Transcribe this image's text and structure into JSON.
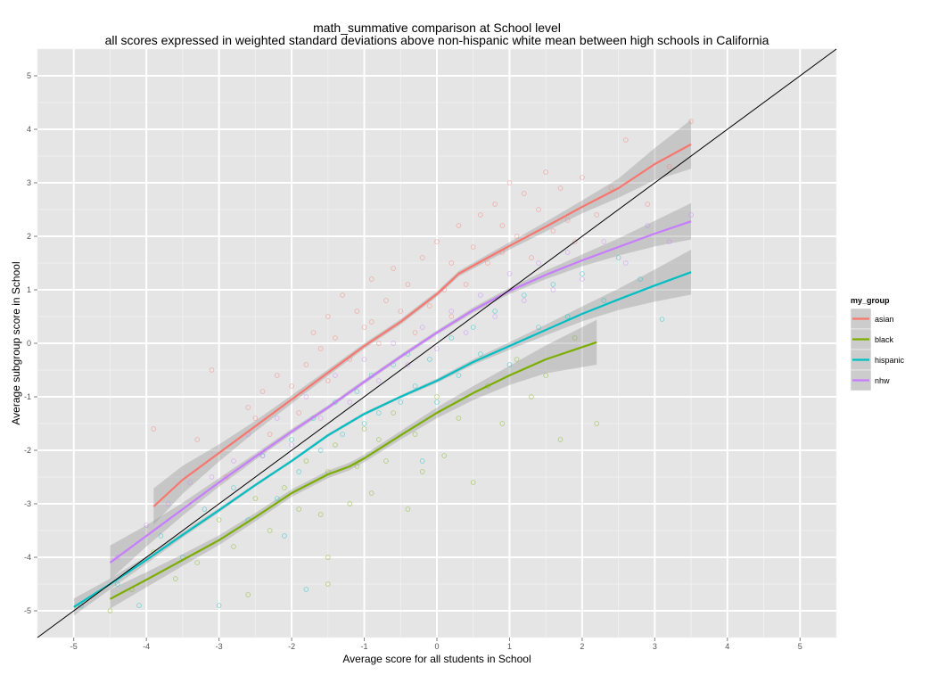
{
  "chart_data": {
    "type": "scatter",
    "title": "math_summative comparison at School level",
    "subtitle": "all scores expressed in weighted standard deviations above non-hispanic white mean between high schools in California",
    "xlabel": "Average score for all students in School",
    "ylabel": "Average subgroup score in School",
    "xlim": [
      -5.5,
      5.5
    ],
    "ylim": [
      -5.5,
      5.5
    ],
    "x_ticks": [
      -5,
      -4,
      -3,
      -2,
      -1,
      0,
      1,
      2,
      3,
      4,
      5
    ],
    "y_ticks": [
      -5,
      -4,
      -3,
      -2,
      -1,
      0,
      1,
      2,
      3,
      4,
      5
    ],
    "grid": true,
    "reference_line": {
      "slope": 1,
      "intercept": 0
    },
    "legend": {
      "title": "my_group",
      "placement": "right"
    },
    "series": [
      {
        "name": "asian",
        "color": "#F8766D",
        "smooth": {
          "x": [
            -3.9,
            -3.5,
            -3.0,
            -2.5,
            -2.0,
            -1.5,
            -1.0,
            -0.5,
            0.0,
            0.3,
            0.7,
            1.0,
            1.5,
            2.0,
            2.5,
            3.0,
            3.5
          ],
          "y": [
            -3.05,
            -2.55,
            -2.05,
            -1.55,
            -1.05,
            -0.55,
            -0.05,
            0.4,
            0.92,
            1.3,
            1.6,
            1.82,
            2.18,
            2.55,
            2.9,
            3.35,
            3.72
          ],
          "band": [
            0.34,
            0.26,
            0.16,
            0.1,
            0.08,
            0.06,
            0.05,
            0.05,
            0.05,
            0.05,
            0.06,
            0.07,
            0.09,
            0.12,
            0.18,
            0.3,
            0.46
          ]
        },
        "points": [
          [
            -3.9,
            -1.6
          ],
          [
            -3.3,
            -1.8
          ],
          [
            -2.9,
            -2.5
          ],
          [
            -3.1,
            -0.5
          ],
          [
            -2.6,
            -1.2
          ],
          [
            -2.5,
            -1.4
          ],
          [
            -2.4,
            -0.9
          ],
          [
            -2.2,
            -0.6
          ],
          [
            -2.0,
            -0.8
          ],
          [
            -1.9,
            -1.3
          ],
          [
            -1.8,
            -0.4
          ],
          [
            -1.7,
            0.2
          ],
          [
            -1.6,
            -0.1
          ],
          [
            -1.5,
            0.5
          ],
          [
            -1.4,
            0.1
          ],
          [
            -1.3,
            0.9
          ],
          [
            -1.2,
            -0.3
          ],
          [
            -1.1,
            0.6
          ],
          [
            -1.0,
            0.3
          ],
          [
            -0.9,
            1.2
          ],
          [
            -0.8,
            0.0
          ],
          [
            -0.7,
            0.8
          ],
          [
            -0.6,
            1.4
          ],
          [
            -0.5,
            0.6
          ],
          [
            -0.4,
            1.1
          ],
          [
            -0.3,
            0.2
          ],
          [
            -0.2,
            1.6
          ],
          [
            -0.1,
            0.7
          ],
          [
            0.0,
            1.9
          ],
          [
            0.1,
            1.0
          ],
          [
            0.2,
            1.5
          ],
          [
            0.3,
            2.2
          ],
          [
            0.4,
            1.1
          ],
          [
            0.5,
            1.8
          ],
          [
            0.6,
            2.4
          ],
          [
            0.7,
            1.5
          ],
          [
            0.8,
            2.6
          ],
          [
            0.9,
            1.7
          ],
          [
            1.0,
            3.0
          ],
          [
            1.1,
            2.0
          ],
          [
            1.2,
            2.8
          ],
          [
            1.3,
            1.6
          ],
          [
            1.4,
            2.5
          ],
          [
            1.5,
            3.2
          ],
          [
            1.6,
            2.1
          ],
          [
            1.7,
            2.9
          ],
          [
            1.8,
            2.3
          ],
          [
            2.0,
            3.1
          ],
          [
            2.2,
            2.4
          ],
          [
            2.4,
            2.9
          ],
          [
            2.6,
            3.8
          ],
          [
            2.9,
            2.6
          ],
          [
            3.2,
            3.3
          ],
          [
            3.5,
            4.15
          ],
          [
            -2.3,
            -1.7
          ],
          [
            -1.5,
            -0.7
          ],
          [
            -0.9,
            0.4
          ],
          [
            0.2,
            0.5
          ],
          [
            0.9,
            2.2
          ],
          [
            1.9,
            1.9
          ]
        ]
      },
      {
        "name": "black",
        "color": "#7CAE00",
        "smooth": {
          "x": [
            -4.5,
            -4.0,
            -3.5,
            -3.0,
            -2.5,
            -2.0,
            -1.5,
            -1.2,
            -1.0,
            -0.5,
            0.0,
            0.5,
            1.0,
            1.5,
            2.2
          ],
          "y": [
            -4.78,
            -4.42,
            -4.05,
            -3.68,
            -3.25,
            -2.8,
            -2.45,
            -2.3,
            -2.15,
            -1.72,
            -1.3,
            -0.93,
            -0.6,
            -0.3,
            0.02
          ],
          "band": [
            0.18,
            0.14,
            0.11,
            0.09,
            0.08,
            0.07,
            0.07,
            0.07,
            0.07,
            0.08,
            0.1,
            0.13,
            0.18,
            0.26,
            0.42
          ]
        },
        "points": [
          [
            -4.5,
            -5.0
          ],
          [
            -4.2,
            -4.6
          ],
          [
            -3.9,
            -3.9
          ],
          [
            -3.6,
            -4.4
          ],
          [
            -3.3,
            -4.1
          ],
          [
            -3.0,
            -3.3
          ],
          [
            -2.8,
            -3.8
          ],
          [
            -2.6,
            -4.7
          ],
          [
            -2.5,
            -2.9
          ],
          [
            -2.3,
            -3.5
          ],
          [
            -2.1,
            -2.7
          ],
          [
            -1.9,
            -3.1
          ],
          [
            -1.8,
            -2.2
          ],
          [
            -1.6,
            -3.2
          ],
          [
            -1.5,
            -2.4
          ],
          [
            -1.4,
            -1.9
          ],
          [
            -1.2,
            -3.0
          ],
          [
            -1.1,
            -2.3
          ],
          [
            -1.0,
            -1.6
          ],
          [
            -0.9,
            -2.8
          ],
          [
            -0.8,
            -1.8
          ],
          [
            -0.7,
            -2.2
          ],
          [
            -0.6,
            -1.3
          ],
          [
            -0.4,
            -3.1
          ],
          [
            -0.3,
            -1.7
          ],
          [
            -0.2,
            -2.4
          ],
          [
            0.0,
            -1.0
          ],
          [
            0.1,
            -2.1
          ],
          [
            0.3,
            -1.4
          ],
          [
            0.5,
            -2.6
          ],
          [
            0.7,
            -0.8
          ],
          [
            0.9,
            -1.5
          ],
          [
            1.1,
            -0.3
          ],
          [
            1.3,
            -1.0
          ],
          [
            1.5,
            -0.6
          ],
          [
            1.7,
            -1.8
          ],
          [
            1.9,
            0.1
          ],
          [
            2.2,
            -1.5
          ],
          [
            -1.5,
            -4.0
          ],
          [
            -1.5,
            -4.5
          ]
        ]
      },
      {
        "name": "hispanic",
        "color": "#00BFC4",
        "smooth": {
          "x": [
            -5.0,
            -4.5,
            -4.0,
            -3.5,
            -3.0,
            -2.5,
            -2.0,
            -1.5,
            -1.0,
            -0.5,
            0.0,
            0.5,
            1.0,
            1.5,
            2.0,
            2.5,
            3.0,
            3.5
          ],
          "y": [
            -4.93,
            -4.5,
            -4.05,
            -3.58,
            -3.12,
            -2.65,
            -2.2,
            -1.72,
            -1.32,
            -1.0,
            -0.7,
            -0.35,
            -0.05,
            0.25,
            0.55,
            0.82,
            1.08,
            1.33
          ],
          "band": [
            0.16,
            0.1,
            0.07,
            0.05,
            0.04,
            0.03,
            0.03,
            0.03,
            0.03,
            0.03,
            0.04,
            0.05,
            0.07,
            0.1,
            0.14,
            0.2,
            0.3,
            0.42
          ]
        },
        "points": [
          [
            -4.9,
            -4.9
          ],
          [
            -4.4,
            -4.5
          ],
          [
            -4.1,
            -4.9
          ],
          [
            -3.8,
            -3.6
          ],
          [
            -3.5,
            -4.0
          ],
          [
            -3.2,
            -3.1
          ],
          [
            -3.0,
            -4.9
          ],
          [
            -2.8,
            -2.7
          ],
          [
            -2.6,
            -3.3
          ],
          [
            -2.4,
            -2.1
          ],
          [
            -2.2,
            -2.9
          ],
          [
            -2.0,
            -1.8
          ],
          [
            -1.9,
            -2.4
          ],
          [
            -1.7,
            -1.4
          ],
          [
            -1.6,
            -2.0
          ],
          [
            -1.4,
            -1.1
          ],
          [
            -1.3,
            -1.7
          ],
          [
            -1.1,
            -0.9
          ],
          [
            -1.0,
            -1.5
          ],
          [
            -0.9,
            -0.6
          ],
          [
            -0.8,
            -1.3
          ],
          [
            -0.6,
            -0.4
          ],
          [
            -0.5,
            -1.1
          ],
          [
            -0.4,
            -0.2
          ],
          [
            -0.3,
            -0.8
          ],
          [
            -0.1,
            -0.3
          ],
          [
            0.0,
            -1.1
          ],
          [
            0.2,
            0.1
          ],
          [
            0.3,
            -0.6
          ],
          [
            0.5,
            0.3
          ],
          [
            0.6,
            -0.2
          ],
          [
            0.8,
            0.6
          ],
          [
            1.0,
            -0.4
          ],
          [
            1.2,
            0.9
          ],
          [
            1.4,
            0.3
          ],
          [
            1.6,
            1.1
          ],
          [
            1.8,
            0.5
          ],
          [
            2.0,
            1.3
          ],
          [
            2.3,
            0.8
          ],
          [
            2.5,
            1.6
          ],
          [
            2.8,
            1.2
          ],
          [
            3.1,
            0.45
          ],
          [
            -1.8,
            -4.6
          ],
          [
            -2.1,
            -3.6
          ],
          [
            -0.2,
            -2.2
          ]
        ]
      },
      {
        "name": "nhw",
        "color": "#C77CFF",
        "smooth": {
          "x": [
            -4.5,
            -4.0,
            -3.5,
            -3.0,
            -2.5,
            -2.0,
            -1.5,
            -1.0,
            -0.5,
            0.0,
            0.5,
            1.0,
            1.5,
            2.0,
            2.5,
            3.0,
            3.5
          ],
          "y": [
            -4.1,
            -3.6,
            -3.1,
            -2.6,
            -2.12,
            -1.65,
            -1.2,
            -0.72,
            -0.25,
            0.2,
            0.62,
            0.98,
            1.28,
            1.55,
            1.8,
            2.05,
            2.28
          ],
          "band": [
            0.32,
            0.2,
            0.12,
            0.08,
            0.06,
            0.05,
            0.04,
            0.04,
            0.04,
            0.04,
            0.05,
            0.06,
            0.08,
            0.11,
            0.16,
            0.24,
            0.34
          ]
        },
        "points": [
          [
            -4.4,
            -4.0
          ],
          [
            -4.0,
            -3.4
          ],
          [
            -3.7,
            -3.0
          ],
          [
            -3.4,
            -2.6
          ],
          [
            -3.1,
            -2.5
          ],
          [
            -2.8,
            -2.2
          ],
          [
            -2.6,
            -1.7
          ],
          [
            -2.4,
            -2.1
          ],
          [
            -2.2,
            -1.4
          ],
          [
            -2.0,
            -1.9
          ],
          [
            -1.8,
            -1.0
          ],
          [
            -1.6,
            -1.4
          ],
          [
            -1.4,
            -0.6
          ],
          [
            -1.2,
            -1.1
          ],
          [
            -1.0,
            -0.3
          ],
          [
            -0.8,
            -0.7
          ],
          [
            -0.6,
            0.0
          ],
          [
            -0.4,
            -0.4
          ],
          [
            -0.2,
            0.3
          ],
          [
            0.0,
            -0.1
          ],
          [
            0.2,
            0.6
          ],
          [
            0.4,
            0.2
          ],
          [
            0.6,
            0.9
          ],
          [
            0.8,
            0.5
          ],
          [
            1.0,
            1.3
          ],
          [
            1.2,
            0.8
          ],
          [
            1.4,
            1.5
          ],
          [
            1.6,
            1.0
          ],
          [
            1.8,
            1.7
          ],
          [
            2.0,
            1.2
          ],
          [
            2.3,
            1.9
          ],
          [
            2.6,
            1.5
          ],
          [
            2.9,
            2.2
          ],
          [
            3.2,
            1.9
          ],
          [
            3.5,
            2.4
          ]
        ]
      }
    ]
  }
}
